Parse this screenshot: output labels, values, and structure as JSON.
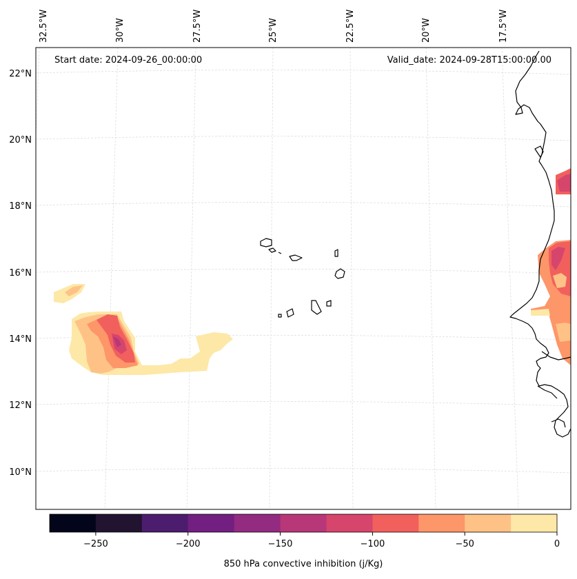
{
  "map": {
    "start_date_label": "Start date: 2024-09-26_00:00:00",
    "valid_date_label": "Valid_date: 2024-09-28T15:00:00.00",
    "lon_labels": [
      "32.5°W",
      "30°W",
      "27.5°W",
      "25°W",
      "22.5°W",
      "20°W",
      "17.5°W"
    ],
    "lat_labels": [
      "22°N",
      "20°N",
      "18°N",
      "16°N",
      "14°N",
      "12°N",
      "10°N"
    ],
    "coastline_color": "#000000",
    "gridline_color": "#cccccc"
  },
  "colorbar": {
    "label": "850 hPa convective inhibition (j/Kg)",
    "ticks": [
      "−250",
      "−200",
      "−150",
      "−100",
      "−50",
      "0"
    ],
    "range": [
      -275,
      0
    ],
    "colors": [
      "#03051a",
      "#221331",
      "#4c1d6e",
      "#721f81",
      "#932b80",
      "#b73779",
      "#d6456c",
      "#f1605d",
      "#fd9668",
      "#fec287",
      "#fde8a7"
    ]
  }
}
